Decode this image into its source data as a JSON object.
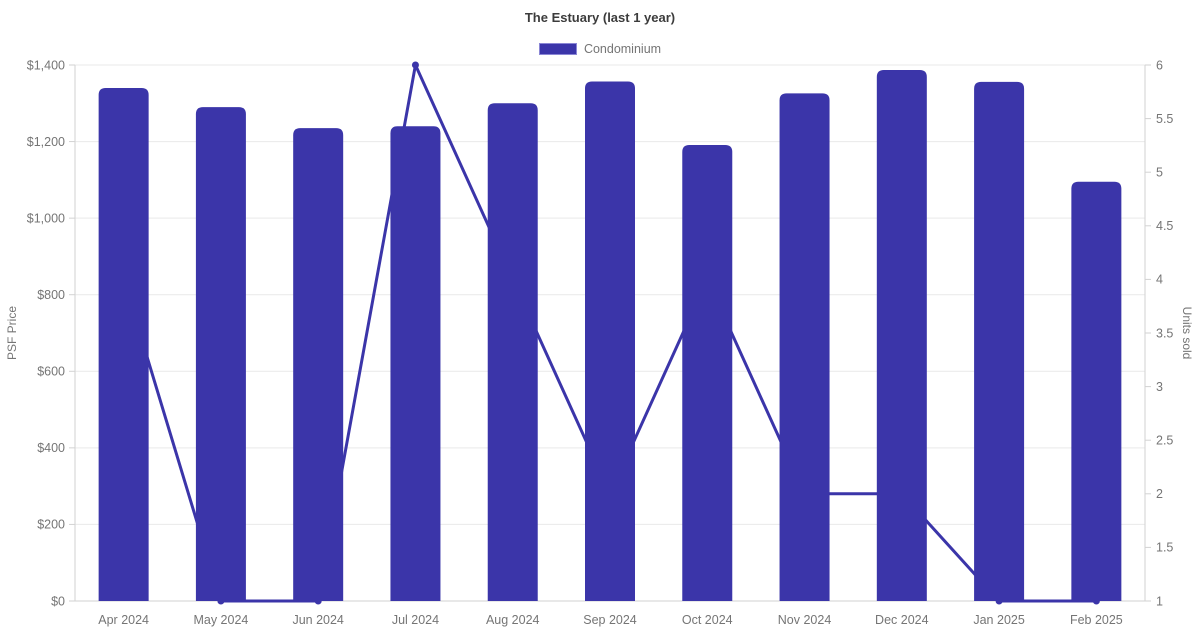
{
  "title": "The Estuary (last 1 year)",
  "legend": {
    "position": "top",
    "items": [
      {
        "label": "Condominium",
        "color": "#3b35a9"
      }
    ]
  },
  "colors": {
    "bar": "#3b35a9",
    "line": "#3b35a9",
    "marker": "#3b35a9",
    "grid": "#e9e9e9",
    "axis_border": "#d2d2d2",
    "tick_text": "#757575",
    "title_text": "#3c3c3c"
  },
  "chart_data": {
    "type": "bar",
    "title": "The Estuary (last 1 year)",
    "categories": [
      "Apr 2024",
      "May 2024",
      "Jun 2024",
      "Jul 2024",
      "Aug 2024",
      "Sep 2024",
      "Oct 2024",
      "Nov 2024",
      "Dec 2024",
      "Jan 2025",
      "Feb 2025"
    ],
    "series": [
      {
        "name": "Condominium",
        "type": "bar",
        "y_axis": "left",
        "values": [
          1340,
          1290,
          1235,
          1240,
          1300,
          1357,
          1191,
          1326,
          1387,
          1356,
          1095
        ]
      },
      {
        "name": "Units sold",
        "type": "line",
        "y_axis": "right",
        "values": [
          4,
          1,
          1,
          6,
          4,
          2,
          4,
          2,
          2,
          1,
          1
        ]
      }
    ],
    "axes": {
      "left": {
        "title": "PSF Price",
        "min": 0,
        "max": 1400,
        "step": 200,
        "tick_labels": [
          "$0",
          "$200",
          "$400",
          "$600",
          "$800",
          "$1,000",
          "$1,200",
          "$1,400"
        ]
      },
      "right": {
        "title": "Units sold",
        "min": 1,
        "max": 6,
        "step": 0.5,
        "tick_labels": [
          "1",
          "1.5",
          "2",
          "2.5",
          "3",
          "3.5",
          "4",
          "4.5",
          "5",
          "5.5",
          "6"
        ]
      }
    },
    "grid": "horizontal",
    "legend_position": "top"
  }
}
